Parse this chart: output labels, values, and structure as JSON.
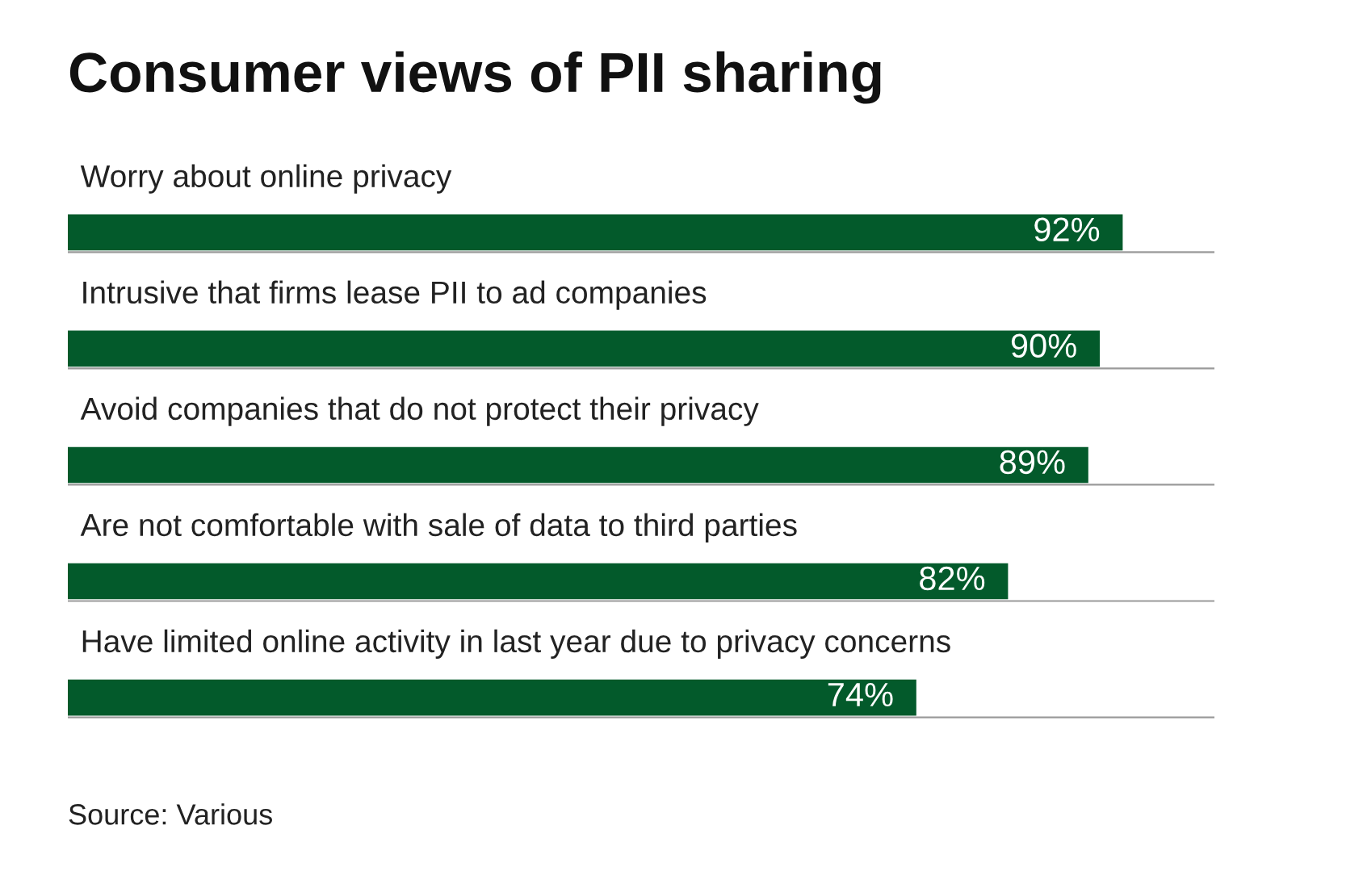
{
  "chart_data": {
    "type": "bar",
    "orientation": "horizontal",
    "title": "Consumer views of PII sharing",
    "categories": [
      "Worry about online privacy",
      "Intrusive that firms lease PII to ad companies",
      "Avoid companies that do not protect their privacy",
      "Are not comfortable with sale of data to third parties",
      "Have limited online activity in last year due to privacy concerns"
    ],
    "values": [
      92,
      90,
      89,
      82,
      74
    ],
    "value_labels": [
      "92%",
      "90%",
      "89%",
      "82%",
      "74%"
    ],
    "color": "#035a2b",
    "xlim": [
      0,
      100
    ],
    "annotations": [
      "Source: Various"
    ]
  }
}
